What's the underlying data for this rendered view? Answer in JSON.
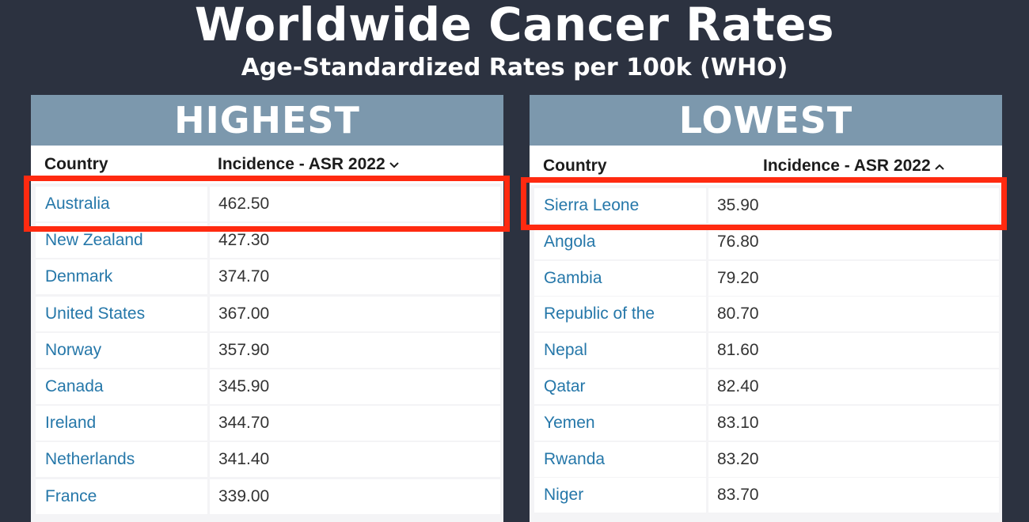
{
  "title": "Worldwide Cancer Rates",
  "subtitle": "Age-Standardized Rates per 100k (WHO)",
  "highlight_color": "#ff2a10",
  "highest": {
    "header": "HIGHEST",
    "col_country": "Country",
    "col_incidence": "Incidence - ASR 2022",
    "sort_icon": "chevron-down-icon",
    "rows": [
      {
        "country": "Australia",
        "value": "462.50"
      },
      {
        "country": "New Zealand",
        "value": "427.30"
      },
      {
        "country": "Denmark",
        "value": "374.70"
      },
      {
        "country": "United States",
        "value": "367.00"
      },
      {
        "country": "Norway",
        "value": "357.90"
      },
      {
        "country": "Canada",
        "value": "345.90"
      },
      {
        "country": "Ireland",
        "value": "344.70"
      },
      {
        "country": "Netherlands",
        "value": "341.40"
      },
      {
        "country": "France",
        "value": "339.00"
      }
    ]
  },
  "lowest": {
    "header": "LOWEST",
    "col_country": "Country",
    "col_incidence": "Incidence - ASR 2022",
    "sort_icon": "chevron-up-icon",
    "rows": [
      {
        "country": "Sierra Leone",
        "value": "35.90"
      },
      {
        "country": "Angola",
        "value": "76.80"
      },
      {
        "country": "Gambia",
        "value": "79.20"
      },
      {
        "country": "Republic of the Congo",
        "value": "80.70"
      },
      {
        "country": "Nepal",
        "value": "81.60"
      },
      {
        "country": "Qatar",
        "value": "82.40"
      },
      {
        "country": "Yemen",
        "value": "83.10"
      },
      {
        "country": "Rwanda",
        "value": "83.20"
      },
      {
        "country": "Niger",
        "value": "83.70"
      }
    ]
  }
}
